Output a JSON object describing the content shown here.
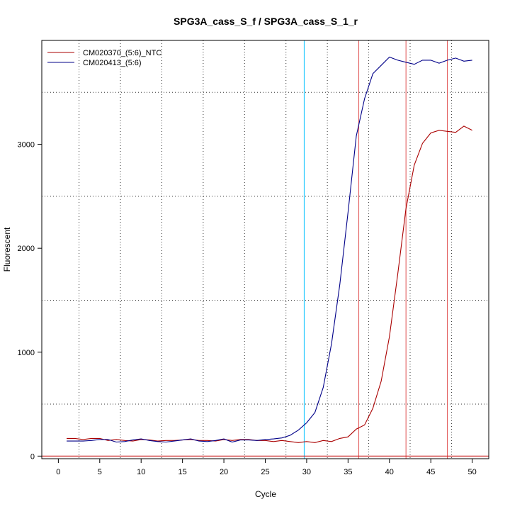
{
  "chart_data": {
    "type": "line",
    "title": "SPG3A_cass_S_f / SPG3A_cass_S_1_r",
    "xlabel": "Cycle",
    "ylabel": "Fluorescent",
    "xlim": [
      -2,
      52
    ],
    "ylim": [
      -25,
      4000
    ],
    "xticks": [
      0,
      5,
      10,
      15,
      20,
      25,
      30,
      35,
      40,
      45,
      50
    ],
    "yticks": [
      0,
      1000,
      2000,
      3000
    ],
    "grid": "dotted",
    "legend_position": "top-left",
    "threshold_y": 0,
    "vlines": [
      {
        "x": 29.7,
        "color": "#00c0ff"
      },
      {
        "x": 36.3,
        "color": "#e05050"
      },
      {
        "x": 42.0,
        "color": "#e05050"
      },
      {
        "x": 47.0,
        "color": "#e05050"
      }
    ],
    "series": [
      {
        "name": "CM020370_(5:6)_NTC",
        "color": "#aa0000",
        "x": [
          1,
          2,
          3,
          4,
          5,
          6,
          7,
          8,
          9,
          10,
          11,
          12,
          13,
          14,
          15,
          16,
          17,
          18,
          19,
          20,
          21,
          22,
          23,
          24,
          25,
          26,
          27,
          28,
          29,
          30,
          31,
          32,
          33,
          34,
          35,
          36,
          37,
          38,
          39,
          40,
          41,
          42,
          43,
          44,
          45,
          46,
          47,
          48,
          49,
          50
        ],
        "y": [
          170,
          170,
          160,
          170,
          170,
          150,
          160,
          150,
          145,
          160,
          155,
          145,
          150,
          150,
          155,
          160,
          150,
          150,
          145,
          160,
          150,
          160,
          160,
          150,
          150,
          140,
          150,
          140,
          130,
          140,
          130,
          150,
          140,
          170,
          185,
          260,
          300,
          460,
          720,
          1150,
          1750,
          2380,
          2800,
          3010,
          3110,
          3135,
          3125,
          3115,
          3175,
          3135
        ]
      },
      {
        "name": "CM020413_(5:6)",
        "color": "#000088",
        "x": [
          1,
          2,
          3,
          4,
          5,
          6,
          7,
          8,
          9,
          10,
          11,
          12,
          13,
          14,
          15,
          16,
          17,
          18,
          19,
          20,
          21,
          22,
          23,
          24,
          25,
          26,
          27,
          28,
          29,
          30,
          31,
          32,
          33,
          34,
          35,
          36,
          37,
          38,
          39,
          40,
          41,
          42,
          43,
          44,
          45,
          46,
          47,
          48,
          49,
          50
        ],
        "y": [
          145,
          145,
          145,
          150,
          160,
          160,
          135,
          140,
          155,
          165,
          150,
          140,
          135,
          145,
          155,
          165,
          145,
          140,
          150,
          165,
          135,
          155,
          155,
          150,
          160,
          165,
          175,
          200,
          250,
          320,
          420,
          660,
          1080,
          1650,
          2350,
          3080,
          3440,
          3680,
          3760,
          3840,
          3810,
          3790,
          3770,
          3810,
          3810,
          3780,
          3810,
          3830,
          3800,
          3810
        ]
      }
    ]
  }
}
